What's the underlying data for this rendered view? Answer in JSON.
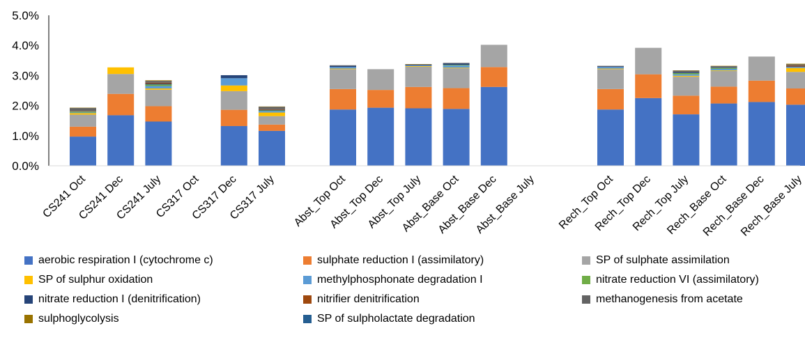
{
  "chart_data": {
    "type": "bar",
    "stacked": true,
    "ylim": [
      0,
      5
    ],
    "yticks": [
      "0.0%",
      "1.0%",
      "2.0%",
      "3.0%",
      "4.0%",
      "5.0%"
    ],
    "legend_position": "bottom",
    "grid": false,
    "categories": [
      "CS241 Oct",
      "CS241 Dec",
      "CS241 July",
      "CS317 Oct",
      "CS317 Dec",
      "CS317 July",
      "Abst_Top Oct",
      "Abst_Top Dec",
      "Abst_Top July",
      "Abst_Base Oct",
      "Abst_Base Dec",
      "Abst_Base July",
      "Rech_Top Oct",
      "Rech_Top Dec",
      "Rech_Top July",
      "Rech_Base Oct",
      "Rech_Base Dec",
      "Rech_Base July"
    ],
    "series": [
      {
        "name": "aerobic respiration I (cytochrome c)",
        "color": "#4472C4",
        "values": [
          0.97,
          1.68,
          1.47,
          0,
          1.32,
          1.16,
          1.87,
          1.93,
          1.91,
          1.89,
          2.62,
          0,
          1.87,
          2.25,
          1.71,
          2.07,
          2.12,
          2.03
        ]
      },
      {
        "name": "sulphate reduction I (assimilatory)",
        "color": "#ED7D31",
        "values": [
          0.33,
          0.71,
          0.51,
          0,
          0.54,
          0.21,
          0.68,
          0.59,
          0.71,
          0.69,
          0.66,
          0,
          0.68,
          0.79,
          0.62,
          0.56,
          0.71,
          0.54
        ]
      },
      {
        "name": "SP of sulphate assimilation",
        "color": "#A5A5A5",
        "values": [
          0.4,
          0.66,
          0.55,
          0,
          0.62,
          0.28,
          0.66,
          0.69,
          0.67,
          0.66,
          0.74,
          0,
          0.66,
          0.88,
          0.63,
          0.52,
          0.8,
          0.55
        ]
      },
      {
        "name": "SP of sulphur oxidation",
        "color": "#FFC000",
        "values": [
          0.05,
          0.22,
          0.04,
          0,
          0.19,
          0.12,
          0.02,
          0,
          0.02,
          0.02,
          0,
          0,
          0.02,
          0,
          0.03,
          0.02,
          0,
          0.13
        ]
      },
      {
        "name": "methylphosphonate degradation I",
        "color": "#5B9BD5",
        "values": [
          0.02,
          0,
          0.08,
          0,
          0.24,
          0.05,
          0.05,
          0,
          0.02,
          0.07,
          0,
          0,
          0.05,
          0,
          0.05,
          0.05,
          0,
          0.03
        ]
      },
      {
        "name": "nitrate reduction VI (assimilatory)",
        "color": "#70AD47",
        "values": [
          0.03,
          0,
          0.05,
          0,
          0,
          0.02,
          0,
          0,
          0,
          0.02,
          0,
          0,
          0,
          0,
          0.04,
          0.03,
          0,
          0
        ]
      },
      {
        "name": "nitrate reduction I (denitrification)",
        "color": "#264478",
        "values": [
          0.01,
          0,
          0.03,
          0,
          0.1,
          0.02,
          0.04,
          0,
          0.02,
          0.05,
          0,
          0,
          0.02,
          0,
          0.03,
          0.02,
          0,
          0.02
        ]
      },
      {
        "name": "nitrifier denitrification",
        "color": "#9E480E",
        "values": [
          0.01,
          0,
          0.03,
          0,
          0,
          0.02,
          0,
          0,
          0,
          0,
          0,
          0,
          0,
          0,
          0,
          0,
          0,
          0.03
        ]
      },
      {
        "name": "methanogenesis from acetate",
        "color": "#636363",
        "values": [
          0.1,
          0,
          0.06,
          0,
          0,
          0.08,
          0.02,
          0,
          0.02,
          0.02,
          0,
          0,
          0.02,
          0,
          0.05,
          0.04,
          0,
          0.04
        ]
      },
      {
        "name": "sulphoglycolysis",
        "color": "#997300",
        "values": [
          0.01,
          0,
          0.02,
          0,
          0,
          0.01,
          0,
          0,
          0.01,
          0,
          0,
          0,
          0,
          0,
          0.01,
          0.01,
          0,
          0.02
        ]
      },
      {
        "name": "SP of sulpholactate degradation",
        "color": "#255E91",
        "values": [
          0,
          0,
          0,
          0,
          0,
          0,
          0,
          0,
          0,
          0,
          0,
          0,
          0,
          0,
          0,
          0,
          0,
          0
        ]
      }
    ]
  }
}
